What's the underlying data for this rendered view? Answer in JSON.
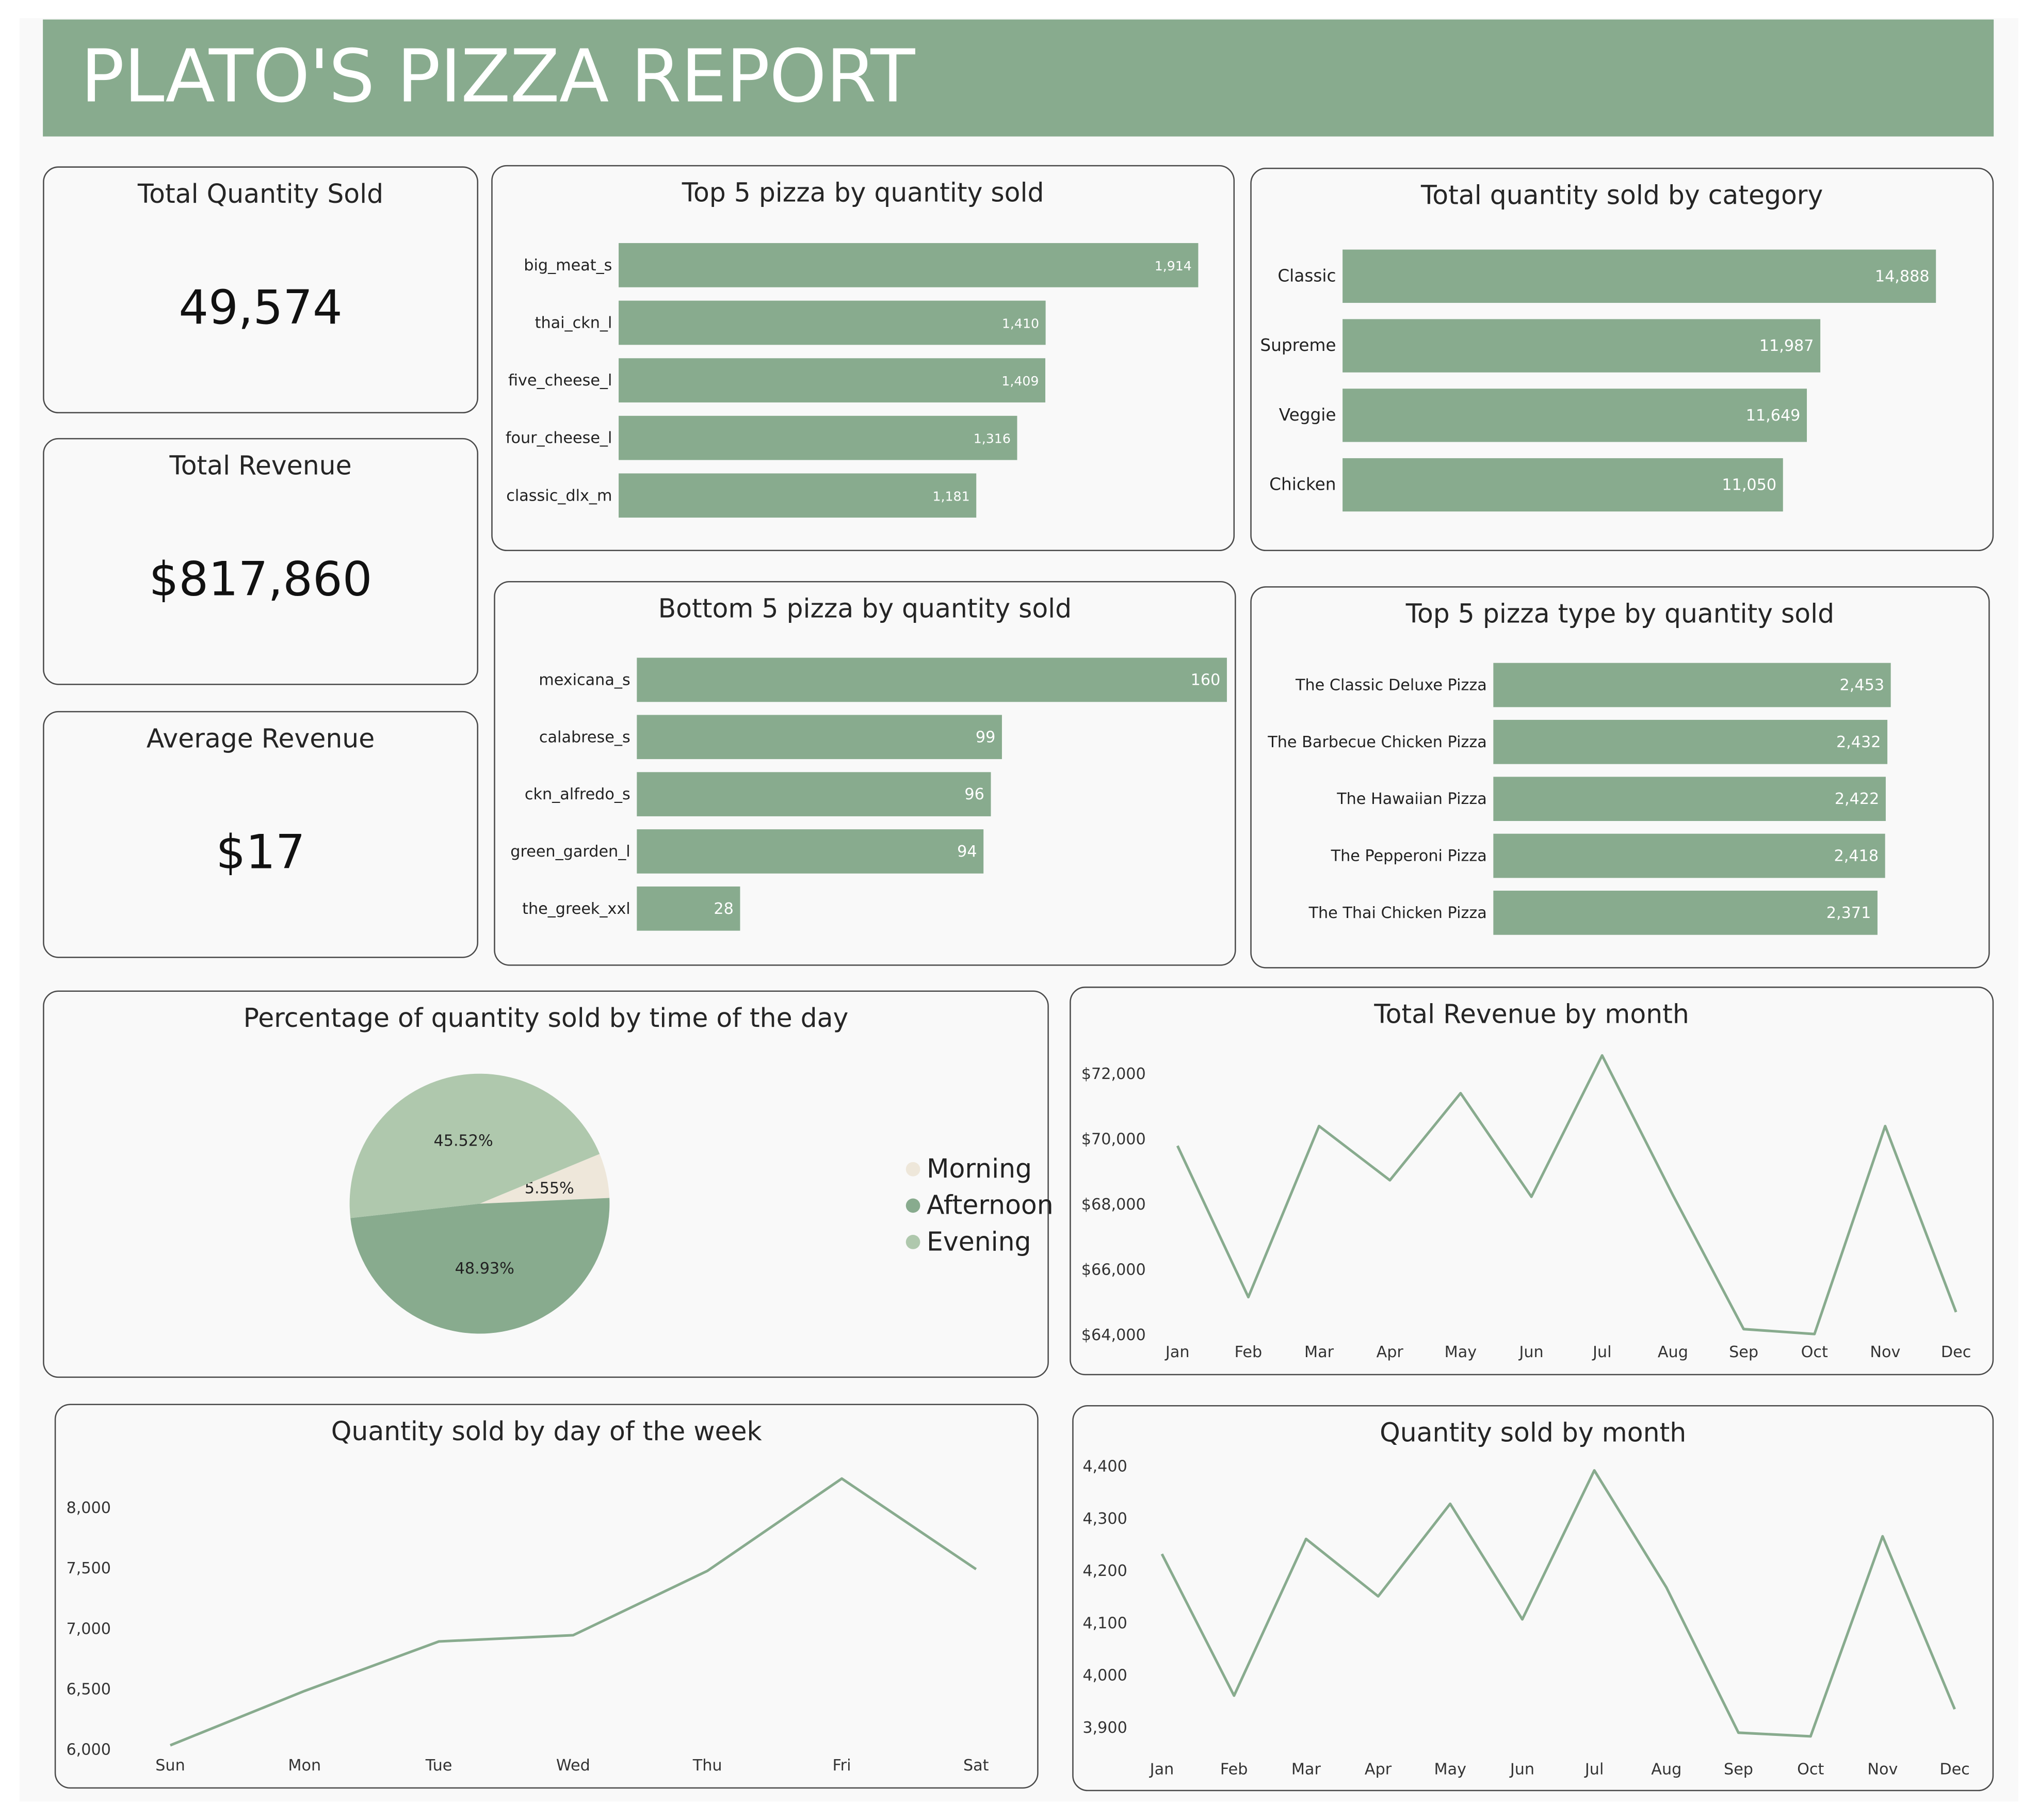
{
  "report": {
    "title": "PLATO'S PIZZA REPORT"
  },
  "colors": {
    "bar": "#88ab8e",
    "line": "#88ab8e",
    "morning": "#eee7da",
    "afternoon": "#88ab8e",
    "evening": "#afc8ad"
  },
  "kpis": [
    {
      "label": "Total Quantity Sold",
      "value": "49,574"
    },
    {
      "label": "Total Revenue",
      "value": "$817,860"
    },
    {
      "label": "Average Revenue",
      "value": "$17"
    }
  ],
  "chart_data": [
    {
      "id": "top5",
      "type": "bar",
      "orientation": "horizontal",
      "title": "Top 5 pizza by quantity sold",
      "categories": [
        "big_meat_s",
        "thai_ckn_l",
        "five_cheese_l",
        "four_cheese_l",
        "classic_dlx_m"
      ],
      "values": [
        1914,
        1410,
        1409,
        1316,
        1181
      ],
      "labels": [
        "1,914",
        "1,410",
        "1,409",
        "1,316",
        "1,181"
      ],
      "xlim": [
        0,
        2000
      ]
    },
    {
      "id": "category",
      "type": "bar",
      "orientation": "horizontal",
      "title": "Total quantity sold by category",
      "categories": [
        "Classic",
        "Supreme",
        "Veggie",
        "Chicken"
      ],
      "values": [
        14888,
        11987,
        11649,
        11050
      ],
      "labels": [
        "14,888",
        "11,987",
        "11,649",
        "11,050"
      ],
      "xlim": [
        0,
        15000
      ]
    },
    {
      "id": "bottom5",
      "type": "bar",
      "orientation": "horizontal",
      "title": "Bottom 5 pizza by quantity sold",
      "categories": [
        "mexicana_s",
        "calabrese_s",
        "ckn_alfredo_s",
        "green_garden_l",
        "the_greek_xxl"
      ],
      "values": [
        160,
        99,
        96,
        94,
        28
      ],
      "labels": [
        "160",
        "99",
        "96",
        "94",
        "28"
      ],
      "xlim": [
        0,
        160
      ]
    },
    {
      "id": "type5",
      "type": "bar",
      "orientation": "horizontal",
      "title": "Top 5 pizza type by quantity sold",
      "categories": [
        "The Classic Deluxe Pizza",
        "The Barbecue Chicken Pizza",
        "The Hawaiian Pizza",
        "The Pepperoni Pizza",
        "The Thai Chicken Pizza"
      ],
      "values": [
        2453,
        2432,
        2422,
        2418,
        2371
      ],
      "labels": [
        "2,453",
        "2,432",
        "2,422",
        "2,418",
        "2,371"
      ],
      "xlim": [
        0,
        3000
      ]
    },
    {
      "id": "pie",
      "type": "pie",
      "title": "Percentage of quantity sold by time of the day",
      "categories": [
        "Morning",
        "Afternoon",
        "Evening"
      ],
      "values": [
        5.55,
        48.93,
        45.52
      ],
      "labels": [
        "5.55%",
        "48.93%",
        "45.52%"
      ],
      "legend": "right"
    },
    {
      "id": "revmonth",
      "type": "line",
      "title": "Total Revenue by month",
      "x": [
        "Jan",
        "Feb",
        "Mar",
        "Apr",
        "May",
        "Jun",
        "Jul",
        "Aug",
        "Sep",
        "Oct",
        "Nov",
        "Dec"
      ],
      "values": [
        69793,
        65160,
        70397,
        68737,
        71403,
        68230,
        72558,
        68278,
        64180,
        64028,
        70395,
        64701
      ],
      "ylim": [
        64000,
        72000
      ],
      "yticks": [
        64000,
        66000,
        68000,
        70000,
        72000
      ],
      "ytick_labels": [
        "$64,000",
        "$66,000",
        "$68,000",
        "$70,000",
        "$72,000"
      ]
    },
    {
      "id": "daywk",
      "type": "line",
      "title": "Quantity sold by day of the week",
      "x": [
        "Sun",
        "Mon",
        "Tue",
        "Wed",
        "Thu",
        "Fri",
        "Sat"
      ],
      "values": [
        6035,
        6485,
        6895,
        6946,
        7478,
        8242,
        7493
      ],
      "ylim": [
        6000,
        8000
      ],
      "yticks": [
        6000,
        6500,
        7000,
        7500,
        8000
      ],
      "ytick_labels": [
        "6,000",
        "6,500",
        "7,000",
        "7,500",
        "8,000"
      ]
    },
    {
      "id": "qtymonth",
      "type": "line",
      "title": "Quantity sold by month",
      "x": [
        "Jan",
        "Feb",
        "Mar",
        "Apr",
        "May",
        "Jun",
        "Jul",
        "Aug",
        "Sep",
        "Oct",
        "Nov",
        "Dec"
      ],
      "values": [
        4232,
        3961,
        4261,
        4151,
        4328,
        4107,
        4392,
        4168,
        3890,
        3883,
        4266,
        3935
      ],
      "ylim": [
        3900,
        4400
      ],
      "yticks": [
        3900,
        4000,
        4100,
        4200,
        4300,
        4400
      ],
      "ytick_labels": [
        "3,900",
        "4,000",
        "4,100",
        "4,200",
        "4,300",
        "4,400"
      ]
    }
  ]
}
